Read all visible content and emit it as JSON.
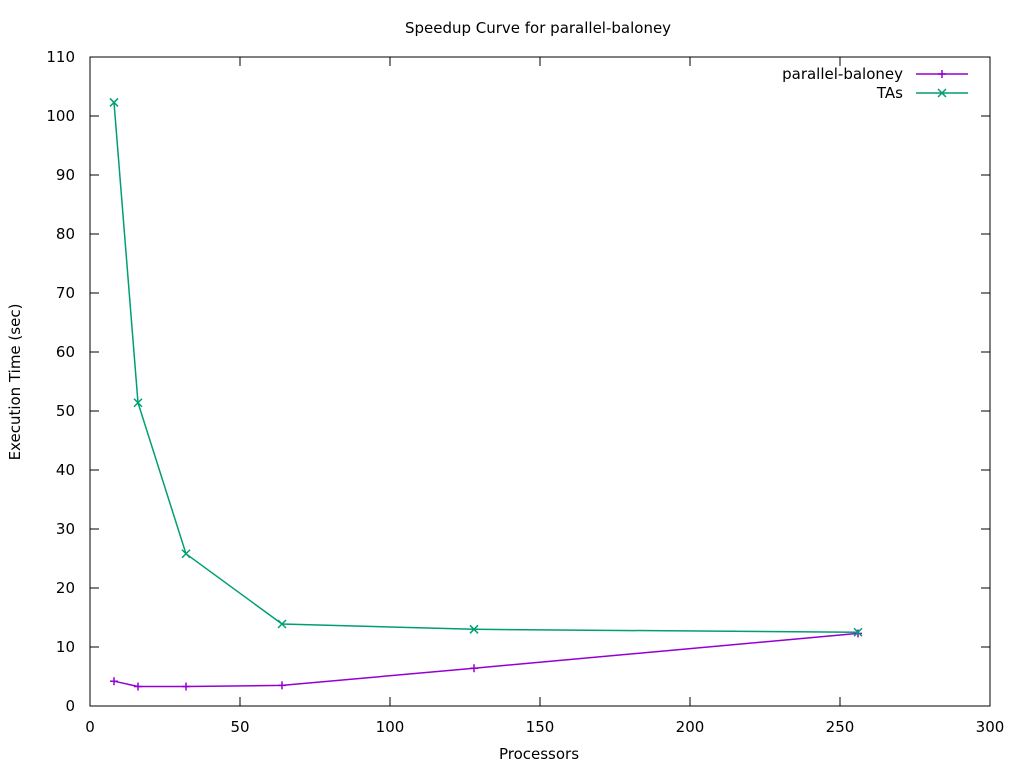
{
  "chart_data": {
    "type": "line",
    "title": "Speedup Curve for parallel-baloney",
    "xlabel": "Processors",
    "ylabel": "Execution Time (sec)",
    "xlim": [
      0,
      300
    ],
    "ylim": [
      0,
      110
    ],
    "xticks": [
      0,
      50,
      100,
      150,
      200,
      250,
      300
    ],
    "yticks": [
      0,
      10,
      20,
      30,
      40,
      50,
      60,
      70,
      80,
      90,
      100,
      110
    ],
    "grid": false,
    "legend_position": "top-right",
    "series": [
      {
        "name": "parallel-baloney",
        "color": "#9400d3",
        "marker": "plus",
        "x": [
          8,
          16,
          32,
          64,
          128,
          256
        ],
        "y": [
          4.2,
          3.3,
          3.3,
          3.5,
          6.4,
          12.3
        ]
      },
      {
        "name": "TAs",
        "color": "#009e73",
        "marker": "cross",
        "x": [
          8,
          16,
          32,
          64,
          128,
          256
        ],
        "y": [
          102.3,
          51.4,
          25.8,
          13.9,
          13.0,
          12.5
        ]
      }
    ]
  }
}
